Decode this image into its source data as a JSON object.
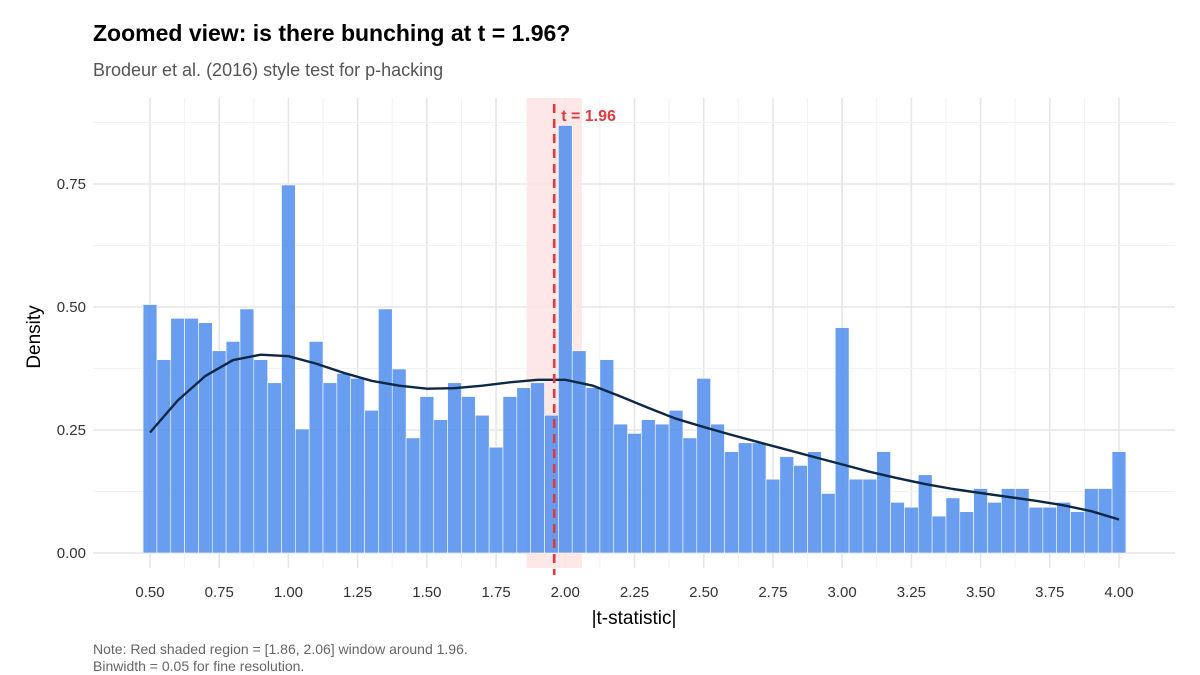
{
  "chart_data": {
    "type": "bar",
    "title": "Zoomed view: is there bunching at t = 1.96?",
    "subtitle": "Brodeur et al. (2016) style test for p-hacking",
    "xlabel": "|t-statistic|",
    "ylabel": "Density",
    "xlim": [
      0.475,
      4.025
    ],
    "ylim": [
      0,
      0.9
    ],
    "binwidth": 0.05,
    "x_ticks": [
      "0.50",
      "0.75",
      "1.00",
      "1.25",
      "1.50",
      "1.75",
      "2.00",
      "2.25",
      "2.50",
      "2.75",
      "3.00",
      "3.25",
      "3.50",
      "3.75",
      "4.00"
    ],
    "y_ticks": [
      "0.00",
      "0.25",
      "0.50",
      "0.75"
    ],
    "grid": true,
    "bar_color": "#5B95EE",
    "density_color": "#0D2847",
    "bins": [
      {
        "x": 0.5,
        "y": 0.505
      },
      {
        "x": 0.55,
        "y": 0.393
      },
      {
        "x": 0.6,
        "y": 0.477
      },
      {
        "x": 0.65,
        "y": 0.477
      },
      {
        "x": 0.7,
        "y": 0.468
      },
      {
        "x": 0.75,
        "y": 0.411
      },
      {
        "x": 0.8,
        "y": 0.43
      },
      {
        "x": 0.85,
        "y": 0.496
      },
      {
        "x": 0.9,
        "y": 0.393
      },
      {
        "x": 0.95,
        "y": 0.346
      },
      {
        "x": 1.0,
        "y": 0.748
      },
      {
        "x": 1.05,
        "y": 0.252
      },
      {
        "x": 1.1,
        "y": 0.43
      },
      {
        "x": 1.15,
        "y": 0.346
      },
      {
        "x": 1.2,
        "y": 0.365
      },
      {
        "x": 1.25,
        "y": 0.355
      },
      {
        "x": 1.3,
        "y": 0.29
      },
      {
        "x": 1.35,
        "y": 0.496
      },
      {
        "x": 1.4,
        "y": 0.374
      },
      {
        "x": 1.45,
        "y": 0.234
      },
      {
        "x": 1.5,
        "y": 0.318
      },
      {
        "x": 1.55,
        "y": 0.271
      },
      {
        "x": 1.6,
        "y": 0.346
      },
      {
        "x": 1.65,
        "y": 0.318
      },
      {
        "x": 1.7,
        "y": 0.28
      },
      {
        "x": 1.75,
        "y": 0.215
      },
      {
        "x": 1.8,
        "y": 0.318
      },
      {
        "x": 1.85,
        "y": 0.336
      },
      {
        "x": 1.9,
        "y": 0.346
      },
      {
        "x": 1.95,
        "y": 0.28
      },
      {
        "x": 2.0,
        "y": 0.869
      },
      {
        "x": 2.05,
        "y": 0.411
      },
      {
        "x": 2.1,
        "y": 0.336
      },
      {
        "x": 2.15,
        "y": 0.393
      },
      {
        "x": 2.2,
        "y": 0.262
      },
      {
        "x": 2.25,
        "y": 0.243
      },
      {
        "x": 2.3,
        "y": 0.271
      },
      {
        "x": 2.35,
        "y": 0.262
      },
      {
        "x": 2.4,
        "y": 0.29
      },
      {
        "x": 2.45,
        "y": 0.234
      },
      {
        "x": 2.5,
        "y": 0.355
      },
      {
        "x": 2.55,
        "y": 0.262
      },
      {
        "x": 2.6,
        "y": 0.206
      },
      {
        "x": 2.65,
        "y": 0.224
      },
      {
        "x": 2.7,
        "y": 0.224
      },
      {
        "x": 2.75,
        "y": 0.15
      },
      {
        "x": 2.8,
        "y": 0.196
      },
      {
        "x": 2.85,
        "y": 0.178
      },
      {
        "x": 2.9,
        "y": 0.206
      },
      {
        "x": 2.95,
        "y": 0.121
      },
      {
        "x": 3.0,
        "y": 0.458
      },
      {
        "x": 3.05,
        "y": 0.15
      },
      {
        "x": 3.1,
        "y": 0.15
      },
      {
        "x": 3.15,
        "y": 0.206
      },
      {
        "x": 3.2,
        "y": 0.103
      },
      {
        "x": 3.25,
        "y": 0.093
      },
      {
        "x": 3.3,
        "y": 0.159
      },
      {
        "x": 3.35,
        "y": 0.075
      },
      {
        "x": 3.4,
        "y": 0.112
      },
      {
        "x": 3.45,
        "y": 0.084
      },
      {
        "x": 3.5,
        "y": 0.131
      },
      {
        "x": 3.55,
        "y": 0.103
      },
      {
        "x": 3.6,
        "y": 0.131
      },
      {
        "x": 3.65,
        "y": 0.131
      },
      {
        "x": 3.7,
        "y": 0.093
      },
      {
        "x": 3.75,
        "y": 0.093
      },
      {
        "x": 3.8,
        "y": 0.103
      },
      {
        "x": 3.85,
        "y": 0.084
      },
      {
        "x": 3.9,
        "y": 0.131
      },
      {
        "x": 3.95,
        "y": 0.131
      },
      {
        "x": 4.0,
        "y": 0.206
      }
    ],
    "density": [
      {
        "x": 0.5,
        "y": 0.245
      },
      {
        "x": 0.6,
        "y": 0.31
      },
      {
        "x": 0.7,
        "y": 0.36
      },
      {
        "x": 0.8,
        "y": 0.392
      },
      {
        "x": 0.9,
        "y": 0.403
      },
      {
        "x": 1.0,
        "y": 0.4
      },
      {
        "x": 1.1,
        "y": 0.385
      },
      {
        "x": 1.2,
        "y": 0.366
      },
      {
        "x": 1.3,
        "y": 0.35
      },
      {
        "x": 1.4,
        "y": 0.34
      },
      {
        "x": 1.5,
        "y": 0.334
      },
      {
        "x": 1.6,
        "y": 0.335
      },
      {
        "x": 1.7,
        "y": 0.34
      },
      {
        "x": 1.8,
        "y": 0.347
      },
      {
        "x": 1.9,
        "y": 0.352
      },
      {
        "x": 2.0,
        "y": 0.352
      },
      {
        "x": 2.1,
        "y": 0.34
      },
      {
        "x": 2.2,
        "y": 0.318
      },
      {
        "x": 2.3,
        "y": 0.295
      },
      {
        "x": 2.4,
        "y": 0.273
      },
      {
        "x": 2.5,
        "y": 0.256
      },
      {
        "x": 2.6,
        "y": 0.24
      },
      {
        "x": 2.7,
        "y": 0.225
      },
      {
        "x": 2.8,
        "y": 0.21
      },
      {
        "x": 2.9,
        "y": 0.195
      },
      {
        "x": 3.0,
        "y": 0.18
      },
      {
        "x": 3.1,
        "y": 0.165
      },
      {
        "x": 3.2,
        "y": 0.152
      },
      {
        "x": 3.3,
        "y": 0.14
      },
      {
        "x": 3.4,
        "y": 0.13
      },
      {
        "x": 3.5,
        "y": 0.122
      },
      {
        "x": 3.6,
        "y": 0.114
      },
      {
        "x": 3.7,
        "y": 0.106
      },
      {
        "x": 3.8,
        "y": 0.097
      },
      {
        "x": 3.9,
        "y": 0.085
      },
      {
        "x": 4.0,
        "y": 0.068
      }
    ],
    "reference_line": {
      "x": 1.96,
      "label": "t = 1.96",
      "color": "#E03A3E"
    },
    "shaded_region": {
      "x_min": 1.86,
      "x_max": 2.06,
      "color": "#FDE3E3"
    }
  },
  "note": {
    "line1": "Note: Red shaded region = [1.86, 2.06] window around 1.96.",
    "line2": "Binwidth = 0.05 for fine resolution."
  }
}
